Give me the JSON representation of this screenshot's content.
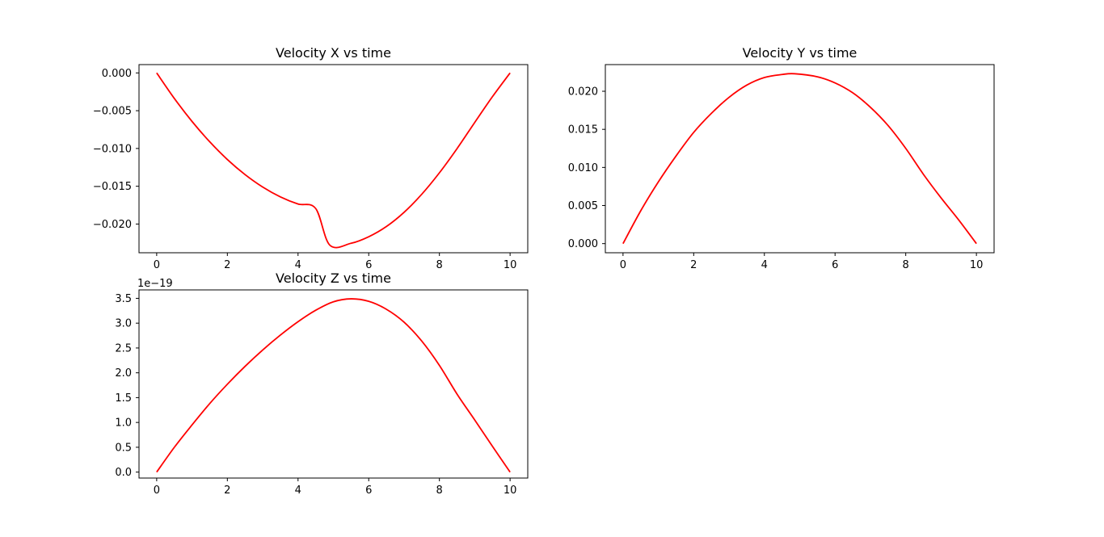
{
  "figure": {
    "background": "#ffffff",
    "line_color": "#ff0000",
    "axes_color": "#000000"
  },
  "chart_data": [
    {
      "type": "line",
      "title": "Velocity X vs time",
      "xlabel": "",
      "ylabel": "",
      "xlim": [
        -0.5,
        10.5
      ],
      "ylim": [
        -0.0238,
        0.0011
      ],
      "xticks": [
        0,
        2,
        4,
        6,
        8,
        10
      ],
      "xtick_labels": [
        "0",
        "2",
        "4",
        "6",
        "8",
        "10"
      ],
      "yticks": [
        0.0,
        -0.005,
        -0.01,
        -0.015,
        -0.02
      ],
      "ytick_labels": [
        "0.000",
        "−0.005",
        "−0.010",
        "−0.015",
        "−0.020"
      ],
      "offset_label": "",
      "grid": false,
      "series": [
        {
          "color": "#ff0000",
          "x": [
            0,
            0.5,
            1,
            1.5,
            2,
            2.5,
            3,
            3.5,
            4,
            4.5,
            4.9,
            5.5,
            6,
            6.5,
            7,
            7.5,
            8,
            8.5,
            9,
            9.5,
            10
          ],
          "y": [
            0.0,
            -0.00338,
            -0.00642,
            -0.00911,
            -0.01146,
            -0.01345,
            -0.0151,
            -0.0164,
            -0.01735,
            -0.01795,
            -0.0228,
            -0.02255,
            -0.02168,
            -0.02033,
            -0.01845,
            -0.01606,
            -0.01322,
            -0.01001,
            -0.00655,
            -0.00315,
            0.0
          ]
        }
      ]
    },
    {
      "type": "line",
      "title": "Velocity Y vs time",
      "xlabel": "",
      "ylabel": "",
      "xlim": [
        -0.5,
        10.5
      ],
      "ylim": [
        -0.0012,
        0.0235
      ],
      "xticks": [
        0,
        2,
        4,
        6,
        8,
        10
      ],
      "xtick_labels": [
        "0",
        "2",
        "4",
        "6",
        "8",
        "10"
      ],
      "yticks": [
        0.0,
        0.005,
        0.01,
        0.015,
        0.02
      ],
      "ytick_labels": [
        "0.000",
        "0.005",
        "0.010",
        "0.015",
        "0.020"
      ],
      "offset_label": "",
      "grid": false,
      "series": [
        {
          "color": "#ff0000",
          "x": [
            0,
            0.5,
            1,
            1.5,
            2,
            2.5,
            3,
            3.5,
            4,
            4.5,
            4.85,
            5.5,
            6,
            6.5,
            7,
            7.5,
            8,
            8.5,
            9,
            9.5,
            10
          ],
          "y": [
            0.0,
            0.0043,
            0.0081,
            0.0115,
            0.0146,
            0.0171,
            0.0192,
            0.0208,
            0.0218,
            0.0222,
            0.0223,
            0.0219,
            0.0211,
            0.0198,
            0.0179,
            0.0155,
            0.0125,
            0.0091,
            0.006,
            0.0031,
            0.0
          ]
        }
      ]
    },
    {
      "type": "line",
      "title": "Velocity Z vs time",
      "xlabel": "",
      "ylabel": "",
      "xlim": [
        -0.5,
        10.5
      ],
      "ylim": [
        -0.12,
        3.67
      ],
      "xticks": [
        0,
        2,
        4,
        6,
        8,
        10
      ],
      "xtick_labels": [
        "0",
        "2",
        "4",
        "6",
        "8",
        "10"
      ],
      "yticks": [
        0.0,
        0.5,
        1.0,
        1.5,
        2.0,
        2.5,
        3.0,
        3.5
      ],
      "ytick_labels": [
        "0.0",
        "0.5",
        "1.0",
        "1.5",
        "2.0",
        "2.5",
        "3.0",
        "3.5"
      ],
      "offset_label": "1e−19",
      "grid": false,
      "series": [
        {
          "color": "#ff0000",
          "x": [
            0,
            0.5,
            1,
            1.5,
            2,
            2.5,
            3,
            3.5,
            4,
            4.5,
            5,
            5.5,
            6,
            6.5,
            7,
            7.5,
            8,
            8.5,
            9,
            9.5,
            10
          ],
          "y": [
            0.0,
            0.5,
            0.95,
            1.38,
            1.77,
            2.13,
            2.46,
            2.76,
            3.03,
            3.26,
            3.43,
            3.49,
            3.44,
            3.28,
            3.02,
            2.64,
            2.15,
            1.57,
            1.05,
            0.52,
            0.0
          ]
        }
      ]
    }
  ]
}
